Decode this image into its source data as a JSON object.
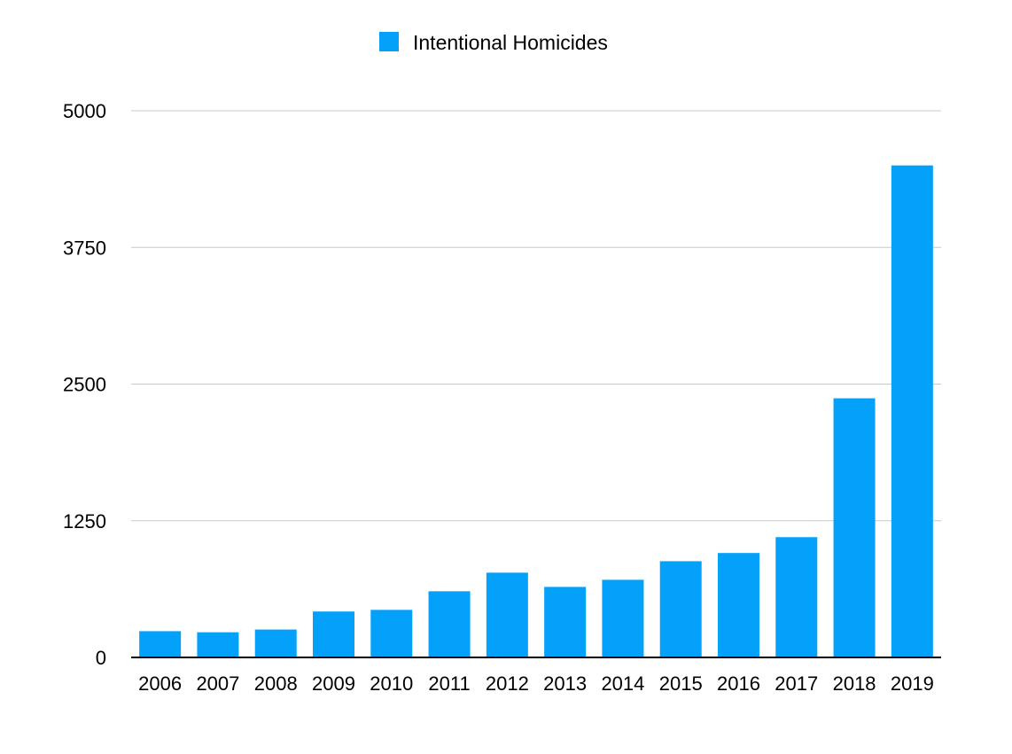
{
  "chart_data": {
    "type": "bar",
    "title": "",
    "xlabel": "",
    "ylabel": "",
    "legend": {
      "placement": "top-center",
      "entries": [
        "Intentional Homicides"
      ]
    },
    "grid": true,
    "ylim": [
      0,
      5000
    ],
    "yticks": [
      0,
      1250,
      2500,
      3750,
      5000
    ],
    "categories": [
      "2006",
      "2007",
      "2008",
      "2009",
      "2010",
      "2011",
      "2012",
      "2013",
      "2014",
      "2015",
      "2016",
      "2017",
      "2018",
      "2019"
    ],
    "series": [
      {
        "name": "Intentional Homicides",
        "color": "#04a1fb",
        "values": [
          240,
          230,
          255,
          420,
          435,
          605,
          775,
          645,
          710,
          880,
          955,
          1100,
          2370,
          4500
        ]
      }
    ]
  }
}
